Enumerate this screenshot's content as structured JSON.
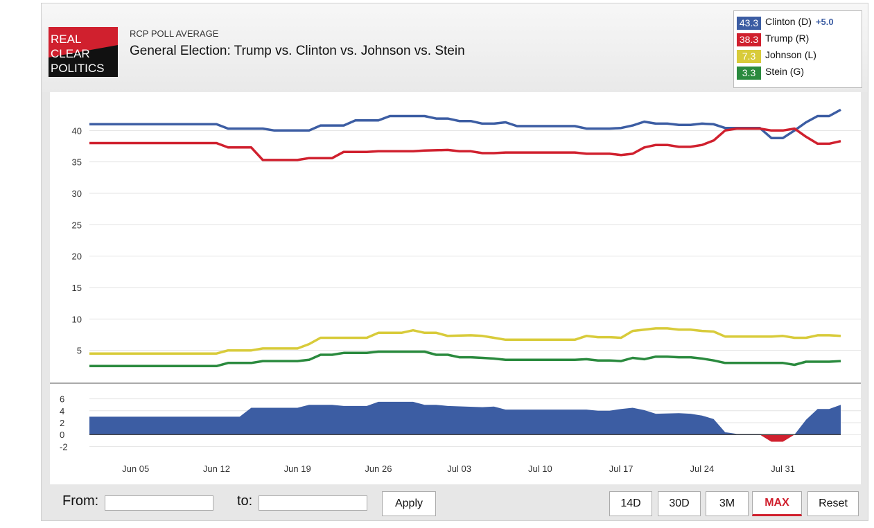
{
  "header": {
    "subtitle": "RCP POLL AVERAGE",
    "title": "General Election: Trump vs. Clinton vs. Johnson vs. Stein",
    "logo_lines": [
      "REAL",
      "CLEAR",
      "POLITICS"
    ]
  },
  "legend": [
    {
      "value": "43.3",
      "name": "Clinton (D)",
      "diff": "+5.0",
      "color": "#3c5da3"
    },
    {
      "value": "38.3",
      "name": "Trump (R)",
      "diff": "",
      "color": "#d0202e"
    },
    {
      "value": "7.3",
      "name": "Johnson (L)",
      "diff": "",
      "color": "#d8cb3a"
    },
    {
      "value": "3.3",
      "name": "Stein (G)",
      "diff": "",
      "color": "#2a8a3e"
    }
  ],
  "controls": {
    "from_label": "From:",
    "to_label": "to:",
    "apply_label": "Apply",
    "buttons": [
      "14D",
      "30D",
      "3M",
      "MAX",
      "Reset"
    ],
    "active_button": "MAX"
  },
  "chart_data": {
    "type": "line",
    "x_tick_labels": [
      "Jun 05",
      "Jun 12",
      "Jun 19",
      "Jun 26",
      "Jul 03",
      "Jul 10",
      "Jul 17",
      "Jul 24",
      "Jul 31"
    ],
    "x_tick_days": [
      5,
      12,
      19,
      26,
      33,
      40,
      47,
      54,
      61
    ],
    "x_range_days": [
      1,
      64
    ],
    "ylim": [
      0,
      45
    ],
    "y_ticks": [
      5,
      10,
      15,
      20,
      25,
      30,
      35,
      40
    ],
    "grid": true,
    "series": [
      {
        "name": "Clinton (D)",
        "color": "#3c5da3",
        "points": [
          [
            1,
            41
          ],
          [
            12,
            41
          ],
          [
            13,
            40.3
          ],
          [
            16,
            40.3
          ],
          [
            17,
            40
          ],
          [
            20,
            40
          ],
          [
            21,
            40.8
          ],
          [
            23,
            40.8
          ],
          [
            24,
            41.6
          ],
          [
            26,
            41.6
          ],
          [
            27,
            42.3
          ],
          [
            30,
            42.3
          ],
          [
            31,
            41.9
          ],
          [
            32,
            41.9
          ],
          [
            33,
            41.5
          ],
          [
            34,
            41.5
          ],
          [
            35,
            41.1
          ],
          [
            36,
            41.1
          ],
          [
            37,
            41.3
          ],
          [
            38,
            40.7
          ],
          [
            43,
            40.7
          ],
          [
            44,
            40.3
          ],
          [
            46,
            40.3
          ],
          [
            47,
            40.4
          ],
          [
            48,
            40.8
          ],
          [
            49,
            41.4
          ],
          [
            50,
            41.1
          ],
          [
            51,
            41.1
          ],
          [
            52,
            40.9
          ],
          [
            53,
            40.9
          ],
          [
            54,
            41.1
          ],
          [
            55,
            41
          ],
          [
            56,
            40.4
          ],
          [
            59,
            40.4
          ],
          [
            60,
            38.8
          ],
          [
            61,
            38.8
          ],
          [
            62,
            40
          ],
          [
            63,
            41.3
          ],
          [
            64,
            42.3
          ],
          [
            65,
            42.3
          ],
          [
            66,
            43.3
          ]
        ]
      },
      {
        "name": "Trump (R)",
        "color": "#d0202e",
        "points": [
          [
            1,
            38
          ],
          [
            12,
            38
          ],
          [
            13,
            37.3
          ],
          [
            15,
            37.3
          ],
          [
            16,
            35.3
          ],
          [
            19,
            35.3
          ],
          [
            20,
            35.6
          ],
          [
            22,
            35.6
          ],
          [
            23,
            36.6
          ],
          [
            25,
            36.6
          ],
          [
            26,
            36.7
          ],
          [
            29,
            36.7
          ],
          [
            30,
            36.8
          ],
          [
            32,
            36.9
          ],
          [
            33,
            36.7
          ],
          [
            34,
            36.7
          ],
          [
            35,
            36.4
          ],
          [
            36,
            36.4
          ],
          [
            37,
            36.5
          ],
          [
            43,
            36.5
          ],
          [
            44,
            36.3
          ],
          [
            46,
            36.3
          ],
          [
            47,
            36.1
          ],
          [
            48,
            36.3
          ],
          [
            49,
            37.3
          ],
          [
            50,
            37.7
          ],
          [
            51,
            37.7
          ],
          [
            52,
            37.4
          ],
          [
            53,
            37.4
          ],
          [
            54,
            37.7
          ],
          [
            55,
            38.4
          ],
          [
            56,
            40
          ],
          [
            57,
            40.3
          ],
          [
            59,
            40.3
          ],
          [
            60,
            40
          ],
          [
            61,
            40
          ],
          [
            62,
            40.3
          ],
          [
            63,
            39
          ],
          [
            64,
            37.9
          ],
          [
            65,
            37.9
          ],
          [
            66,
            38.3
          ]
        ]
      },
      {
        "name": "Johnson (L)",
        "color": "#d8cb3a",
        "points": [
          [
            1,
            4.5
          ],
          [
            12,
            4.5
          ],
          [
            13,
            5
          ],
          [
            15,
            5
          ],
          [
            16,
            5.3
          ],
          [
            19,
            5.3
          ],
          [
            20,
            6
          ],
          [
            21,
            7
          ],
          [
            25,
            7
          ],
          [
            26,
            7.8
          ],
          [
            28,
            7.8
          ],
          [
            29,
            8.2
          ],
          [
            30,
            7.8
          ],
          [
            31,
            7.8
          ],
          [
            32,
            7.3
          ],
          [
            34,
            7.4
          ],
          [
            35,
            7.3
          ],
          [
            36,
            7
          ],
          [
            37,
            6.7
          ],
          [
            43,
            6.7
          ],
          [
            44,
            7.3
          ],
          [
            45,
            7.1
          ],
          [
            46,
            7.1
          ],
          [
            47,
            7
          ],
          [
            48,
            8.1
          ],
          [
            49,
            8.3
          ],
          [
            50,
            8.5
          ],
          [
            51,
            8.5
          ],
          [
            52,
            8.3
          ],
          [
            53,
            8.3
          ],
          [
            54,
            8.1
          ],
          [
            55,
            8
          ],
          [
            56,
            7.2
          ],
          [
            60,
            7.2
          ],
          [
            61,
            7.3
          ],
          [
            62,
            7
          ],
          [
            63,
            7
          ],
          [
            64,
            7.4
          ],
          [
            65,
            7.4
          ],
          [
            66,
            7.3
          ]
        ]
      },
      {
        "name": "Stein (G)",
        "color": "#2a8a3e",
        "points": [
          [
            1,
            2.5
          ],
          [
            12,
            2.5
          ],
          [
            13,
            3
          ],
          [
            15,
            3
          ],
          [
            16,
            3.3
          ],
          [
            19,
            3.3
          ],
          [
            20,
            3.5
          ],
          [
            21,
            4.3
          ],
          [
            22,
            4.3
          ],
          [
            23,
            4.6
          ],
          [
            25,
            4.6
          ],
          [
            26,
            4.8
          ],
          [
            30,
            4.8
          ],
          [
            31,
            4.3
          ],
          [
            32,
            4.3
          ],
          [
            33,
            3.9
          ],
          [
            34,
            3.9
          ],
          [
            35,
            3.8
          ],
          [
            36,
            3.7
          ],
          [
            37,
            3.5
          ],
          [
            43,
            3.5
          ],
          [
            44,
            3.6
          ],
          [
            45,
            3.4
          ],
          [
            46,
            3.4
          ],
          [
            47,
            3.3
          ],
          [
            48,
            3.8
          ],
          [
            49,
            3.6
          ],
          [
            50,
            4.0
          ],
          [
            51,
            4.0
          ],
          [
            52,
            3.9
          ],
          [
            53,
            3.9
          ],
          [
            54,
            3.7
          ],
          [
            55,
            3.4
          ],
          [
            56,
            3
          ],
          [
            60,
            3
          ],
          [
            61,
            3
          ],
          [
            62,
            2.7
          ],
          [
            63,
            3.2
          ],
          [
            64,
            3.2
          ],
          [
            65,
            3.2
          ],
          [
            66,
            3.3
          ]
        ]
      }
    ],
    "spread": {
      "ylim": [
        -3,
        7
      ],
      "y_ticks": [
        -2,
        0,
        2,
        4,
        6
      ],
      "positive_color": "#3c5da3",
      "negative_color": "#d0202e",
      "points": [
        [
          1,
          3
        ],
        [
          14,
          3
        ],
        [
          15,
          4.5
        ],
        [
          19,
          4.5
        ],
        [
          20,
          5
        ],
        [
          22,
          5
        ],
        [
          23,
          4.8
        ],
        [
          25,
          4.8
        ],
        [
          26,
          5.5
        ],
        [
          29,
          5.5
        ],
        [
          30,
          5
        ],
        [
          31,
          5
        ],
        [
          32,
          4.8
        ],
        [
          35,
          4.6
        ],
        [
          36,
          4.7
        ],
        [
          37,
          4.2
        ],
        [
          44,
          4.2
        ],
        [
          45,
          4
        ],
        [
          46,
          4
        ],
        [
          47,
          4.3
        ],
        [
          48,
          4.5
        ],
        [
          49,
          4.1
        ],
        [
          50,
          3.5
        ],
        [
          52,
          3.6
        ],
        [
          53,
          3.5
        ],
        [
          54,
          3.2
        ],
        [
          55,
          2.6
        ],
        [
          56,
          0.4
        ],
        [
          57,
          0.1
        ],
        [
          59,
          0.1
        ],
        [
          60,
          -1.2
        ],
        [
          61,
          -1.2
        ],
        [
          62,
          0
        ],
        [
          63,
          2.5
        ],
        [
          64,
          4.3
        ],
        [
          65,
          4.3
        ],
        [
          66,
          5
        ]
      ]
    }
  }
}
